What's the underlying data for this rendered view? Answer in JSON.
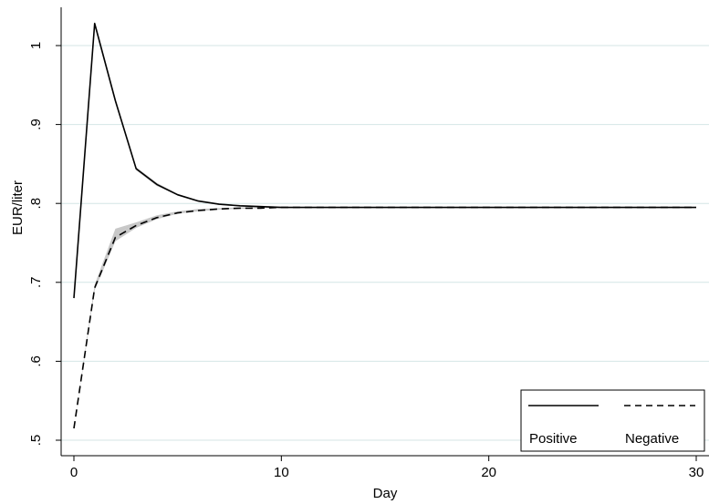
{
  "chart_data": {
    "type": "line",
    "xlabel": "Day",
    "ylabel": "EUR/liter",
    "xlim": [
      0,
      30
    ],
    "ylim": [
      0.5,
      1.05
    ],
    "xticks": [
      0,
      10,
      20,
      30
    ],
    "xtick_labels": [
      "0",
      "10",
      "20",
      "30"
    ],
    "yticks": [
      0.5,
      0.6,
      0.7,
      0.8,
      0.9,
      1.0
    ],
    "ytick_labels": [
      ".5",
      ".6",
      ".7",
      ".8",
      ".9",
      "1"
    ],
    "grid": "horizontal",
    "grid_color": "#d4e6e6",
    "legend_placement": "bottom-right",
    "series": [
      {
        "name": "Positive",
        "style": "solid",
        "x": [
          0,
          1,
          2,
          3,
          4,
          5,
          6,
          7,
          8,
          9,
          10,
          11,
          12,
          13,
          14,
          15,
          16,
          17,
          18,
          19,
          20,
          21,
          22,
          23,
          24,
          25,
          26,
          27,
          28,
          29,
          30
        ],
        "y": [
          0.68,
          1.028,
          0.93,
          0.844,
          0.824,
          0.811,
          0.803,
          0.799,
          0.797,
          0.796,
          0.795,
          0.795,
          0.795,
          0.795,
          0.795,
          0.795,
          0.795,
          0.795,
          0.795,
          0.795,
          0.795,
          0.795,
          0.795,
          0.795,
          0.795,
          0.795,
          0.795,
          0.795,
          0.795,
          0.795,
          0.795
        ],
        "y_lower": [
          0.68,
          1.025,
          0.927,
          0.842,
          0.822,
          0.81,
          0.802,
          0.798,
          0.796,
          0.795,
          0.795,
          0.795,
          0.795,
          0.795,
          0.795,
          0.795,
          0.795,
          0.795,
          0.795,
          0.795,
          0.795,
          0.795,
          0.795,
          0.795,
          0.795,
          0.795,
          0.795,
          0.795,
          0.795,
          0.795,
          0.795
        ],
        "y_upper": [
          0.68,
          1.031,
          0.933,
          0.846,
          0.826,
          0.812,
          0.804,
          0.8,
          0.798,
          0.797,
          0.796,
          0.795,
          0.795,
          0.795,
          0.795,
          0.795,
          0.795,
          0.795,
          0.795,
          0.795,
          0.795,
          0.795,
          0.795,
          0.795,
          0.795,
          0.795,
          0.795,
          0.795,
          0.795,
          0.795,
          0.795
        ]
      },
      {
        "name": "Negative",
        "style": "dashed",
        "x": [
          0,
          1,
          2,
          3,
          4,
          5,
          6,
          7,
          8,
          9,
          10,
          11,
          12,
          13,
          14,
          15,
          16,
          17,
          18,
          19,
          20,
          21,
          22,
          23,
          24,
          25,
          26,
          27,
          28,
          29,
          30
        ],
        "y": [
          0.515,
          0.693,
          0.757,
          0.772,
          0.782,
          0.788,
          0.791,
          0.793,
          0.794,
          0.794,
          0.795,
          0.795,
          0.795,
          0.795,
          0.795,
          0.795,
          0.795,
          0.795,
          0.795,
          0.795,
          0.795,
          0.795,
          0.795,
          0.795,
          0.795,
          0.795,
          0.795,
          0.795,
          0.795,
          0.795,
          0.795
        ],
        "y_lower": [
          0.515,
          0.69,
          0.752,
          0.769,
          0.78,
          0.787,
          0.79,
          0.792,
          0.793,
          0.794,
          0.794,
          0.795,
          0.795,
          0.795,
          0.795,
          0.795,
          0.795,
          0.795,
          0.795,
          0.795,
          0.795,
          0.795,
          0.795,
          0.795,
          0.795,
          0.795,
          0.795,
          0.795,
          0.795,
          0.795,
          0.795
        ],
        "y_upper": [
          0.515,
          0.697,
          0.768,
          0.776,
          0.785,
          0.79,
          0.793,
          0.794,
          0.795,
          0.795,
          0.795,
          0.795,
          0.795,
          0.795,
          0.795,
          0.795,
          0.795,
          0.795,
          0.795,
          0.795,
          0.795,
          0.795,
          0.795,
          0.795,
          0.795,
          0.795,
          0.795,
          0.795,
          0.795,
          0.795,
          0.795
        ]
      }
    ],
    "band_color": "#c8c8c8"
  }
}
